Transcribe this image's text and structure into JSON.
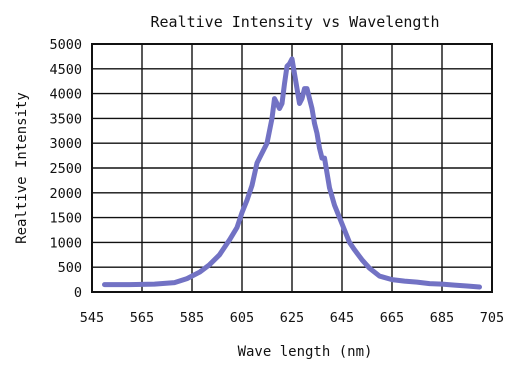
{
  "chart_data": {
    "type": "line",
    "title": "Realtive Intensity vs Wavelength",
    "xlabel": "Wave length (nm)",
    "ylabel": "Realtive Intensity",
    "xlim": [
      545,
      705
    ],
    "ylim": [
      0,
      5000
    ],
    "grid": true,
    "x_ticks": [
      "545",
      "565",
      "585",
      "605",
      "625",
      "645",
      "665",
      "685",
      "705"
    ],
    "y_ticks": [
      "0",
      "500",
      "1000",
      "1500",
      "2000",
      "2500",
      "3000",
      "3500",
      "4000",
      "4500",
      "5000"
    ],
    "colors": {
      "series": "#7272c4",
      "grid": "#111111"
    },
    "series": [
      {
        "x": [
          550,
          560,
          570,
          578,
          583,
          588,
          592,
          596,
          600,
          603,
          605,
          607,
          609,
          611,
          613,
          615,
          617,
          618,
          619,
          620,
          621,
          622,
          623,
          624,
          625,
          626,
          627,
          628,
          629,
          630,
          631,
          632,
          633,
          634,
          635,
          636,
          637,
          638,
          640,
          642,
          644,
          646,
          648,
          650,
          653,
          656,
          660,
          665,
          670,
          675,
          680,
          685,
          690,
          695,
          700
        ],
        "y": [
          150,
          150,
          160,
          190,
          270,
          400,
          550,
          750,
          1050,
          1300,
          1600,
          1850,
          2150,
          2600,
          2800,
          3000,
          3500,
          3900,
          3800,
          3700,
          3800,
          4200,
          4550,
          4600,
          4700,
          4400,
          4100,
          3800,
          3900,
          4100,
          4100,
          3900,
          3700,
          3400,
          3200,
          2900,
          2700,
          2700,
          2100,
          1750,
          1500,
          1250,
          1000,
          850,
          650,
          480,
          320,
          250,
          220,
          200,
          170,
          160,
          140,
          120,
          100
        ]
      }
    ]
  }
}
